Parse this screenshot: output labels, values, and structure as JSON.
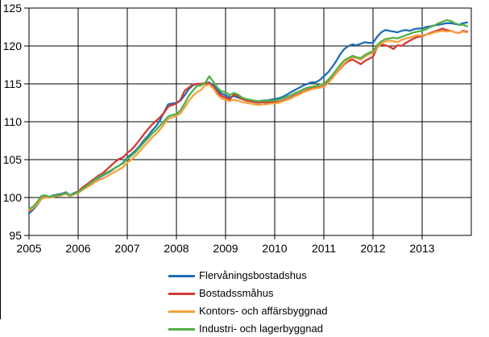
{
  "chart_data": {
    "type": "line",
    "title": "",
    "xlabel": "",
    "ylabel": "",
    "grid": true,
    "legend_position": "bottom",
    "x_axis": {
      "tick_labels": [
        "2005",
        "2006",
        "2007",
        "2008",
        "2009",
        "2010",
        "2011",
        "2012",
        "2013"
      ],
      "frequency": "monthly",
      "start": "2005-01",
      "end": "2013-12"
    },
    "y_axis": {
      "tick_labels": [
        "95",
        "100",
        "105",
        "110",
        "115",
        "120",
        "125"
      ],
      "ticks": [
        95,
        100,
        105,
        110,
        115,
        120,
        125
      ],
      "min": 95,
      "max": 125
    },
    "series": [
      {
        "name": "Flervåningsbostadshus",
        "slug": "flervaningsbostadshus",
        "color": "#1F6EB4",
        "values": [
          97.9,
          98.4,
          99.0,
          99.8,
          100.1,
          100.1,
          100.3,
          100.4,
          100.5,
          100.7,
          100.3,
          100.6,
          100.8,
          101.2,
          101.5,
          101.9,
          102.3,
          102.6,
          102.9,
          103.2,
          103.5,
          103.9,
          104.2,
          104.6,
          105.3,
          105.7,
          106.2,
          106.8,
          107.5,
          108.1,
          108.8,
          109.4,
          110.2,
          111.3,
          112.3,
          112.4,
          112.5,
          112.8,
          113.5,
          114.3,
          114.8,
          115.0,
          115.0,
          115.1,
          115.2,
          114.8,
          114.2,
          113.7,
          113.5,
          113.2,
          113.4,
          113.2,
          113.0,
          112.9,
          112.8,
          112.7,
          112.7,
          112.8,
          112.8,
          112.9,
          113.0,
          113.1,
          113.3,
          113.6,
          113.9,
          114.2,
          114.5,
          114.8,
          115.0,
          115.2,
          115.2,
          115.5,
          116.0,
          116.5,
          117.2,
          118.0,
          118.9,
          119.6,
          120.0,
          120.2,
          120.1,
          120.3,
          120.5,
          120.4,
          120.4,
          121.2,
          121.8,
          122.1,
          122.0,
          121.9,
          121.8,
          122.0,
          122.1,
          122.0,
          122.2,
          122.3,
          122.3,
          122.5,
          122.6,
          122.7,
          122.8,
          122.9,
          123.0,
          123.0,
          122.9,
          122.8,
          123.0,
          123.1
        ]
      },
      {
        "name": "Bostadssmåhus",
        "slug": "bostadssmahus",
        "color": "#D23B34",
        "values": [
          98.2,
          98.6,
          99.2,
          99.9,
          100.0,
          100.0,
          100.2,
          100.3,
          100.4,
          100.6,
          100.2,
          100.5,
          100.8,
          101.3,
          101.7,
          102.1,
          102.5,
          102.9,
          103.2,
          103.7,
          104.2,
          104.7,
          105.1,
          105.3,
          105.9,
          106.3,
          106.9,
          107.6,
          108.3,
          109.0,
          109.6,
          110.1,
          110.6,
          111.2,
          112.0,
          112.2,
          112.4,
          112.9,
          114.1,
          114.5,
          114.9,
          115.0,
          115.0,
          115.1,
          115.1,
          114.6,
          113.9,
          113.4,
          113.2,
          112.9,
          113.6,
          113.4,
          113.0,
          112.8,
          112.7,
          112.6,
          112.5,
          112.6,
          112.5,
          112.6,
          112.6,
          112.6,
          112.8,
          113.0,
          113.2,
          113.5,
          113.7,
          114.0,
          114.2,
          114.4,
          114.5,
          114.6,
          114.7,
          115.2,
          115.8,
          116.4,
          117.0,
          117.6,
          118.0,
          118.2,
          117.9,
          117.6,
          118.0,
          118.3,
          118.6,
          119.8,
          120.2,
          120.1,
          119.9,
          119.6,
          120.1,
          120.0,
          120.4,
          120.7,
          121.0,
          121.2,
          121.3,
          121.5,
          121.7,
          121.9,
          122.1,
          122.3,
          122.1,
          122.0,
          121.8,
          121.7,
          122.0,
          121.9
        ]
      },
      {
        "name": "Kontors- och affärsbyggnad",
        "slug": "kontors-och-affarsbyggnad",
        "color": "#F4A03C",
        "values": [
          98.3,
          98.6,
          99.1,
          99.8,
          100.0,
          100.0,
          100.1,
          100.2,
          100.3,
          100.5,
          100.2,
          100.4,
          100.6,
          101.0,
          101.3,
          101.6,
          102.0,
          102.3,
          102.5,
          102.8,
          103.1,
          103.4,
          103.7,
          104.0,
          104.6,
          105.0,
          105.5,
          106.1,
          106.7,
          107.3,
          107.9,
          108.4,
          109.0,
          109.7,
          110.4,
          110.6,
          110.8,
          111.1,
          111.9,
          112.7,
          113.4,
          113.9,
          114.2,
          114.8,
          114.9,
          114.4,
          113.6,
          113.1,
          112.9,
          112.7,
          112.9,
          112.8,
          112.6,
          112.5,
          112.4,
          112.3,
          112.2,
          112.3,
          112.3,
          112.4,
          112.4,
          112.5,
          112.7,
          112.9,
          113.1,
          113.4,
          113.6,
          113.9,
          114.1,
          114.3,
          114.4,
          114.5,
          114.6,
          115.1,
          115.7,
          116.4,
          117.1,
          117.7,
          118.2,
          118.5,
          118.4,
          118.2,
          118.6,
          118.9,
          119.1,
          119.8,
          120.3,
          120.6,
          120.7,
          120.6,
          120.5,
          120.8,
          121.0,
          121.1,
          121.3,
          121.4,
          121.4,
          121.5,
          121.6,
          121.8,
          121.9,
          122.0,
          121.9,
          122.0,
          121.8,
          121.7,
          121.9,
          121.8
        ]
      },
      {
        "name": "Industri- och lagerbyggnad",
        "slug": "industri-och-lagerbyggnad",
        "color": "#53B147",
        "values": [
          98.5,
          98.8,
          99.4,
          100.2,
          100.3,
          100.1,
          100.2,
          100.3,
          100.4,
          100.6,
          100.3,
          100.5,
          100.7,
          101.1,
          101.5,
          101.9,
          102.3,
          102.7,
          103.0,
          103.3,
          103.6,
          103.9,
          104.2,
          104.5,
          105.1,
          105.5,
          106.0,
          106.6,
          107.2,
          107.8,
          108.4,
          108.9,
          109.5,
          110.1,
          110.7,
          110.9,
          111.0,
          111.5,
          112.4,
          113.4,
          114.1,
          114.7,
          114.8,
          115.1,
          116.0,
          115.3,
          114.5,
          114.0,
          113.9,
          113.5,
          113.8,
          113.6,
          113.2,
          113.0,
          112.9,
          112.8,
          112.7,
          112.8,
          112.7,
          112.8,
          112.8,
          112.9,
          113.1,
          113.3,
          113.5,
          113.8,
          114.0,
          114.3,
          114.5,
          114.6,
          114.7,
          114.9,
          115.0,
          115.5,
          116.1,
          116.8,
          117.5,
          118.1,
          118.4,
          118.7,
          118.5,
          118.4,
          118.8,
          119.1,
          119.3,
          120.1,
          120.6,
          120.9,
          121.0,
          121.1,
          121.0,
          121.2,
          121.4,
          121.6,
          121.8,
          121.9,
          122.0,
          122.2,
          122.5,
          122.7,
          123.0,
          123.2,
          123.4,
          123.3,
          123.0,
          122.8,
          122.8,
          122.6
        ]
      }
    ]
  },
  "style": {
    "grid_color": "#000000",
    "frame_color": "#000000",
    "background": "#ffffff"
  }
}
